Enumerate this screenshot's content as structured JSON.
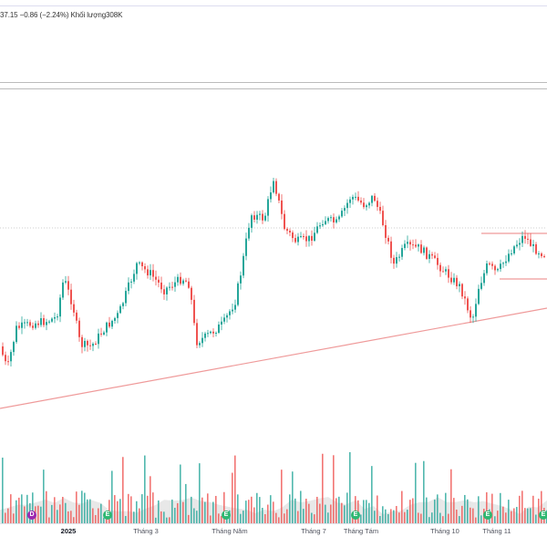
{
  "header": {
    "price_change": "37.15  −0.86 (−2.24%)",
    "volume_label": "Khối lượng",
    "volume_value": "308K"
  },
  "chart_data": {
    "type": "candlestick",
    "x_tick_labels": [
      "2025",
      "Tháng 3",
      "Tháng Năm",
      "Tháng 7",
      "Tháng Tám",
      "Tháng 10",
      "Tháng 11"
    ],
    "markers": [
      {
        "letter": "D",
        "color": "#9c27b0"
      },
      {
        "letter": "E",
        "color": "#2eb872"
      },
      {
        "letter": "E",
        "color": "#2eb872"
      },
      {
        "letter": "E",
        "color": "#2eb872"
      },
      {
        "letter": "E",
        "color": "#2eb872"
      },
      {
        "letter": "E",
        "color": "#2eb872"
      }
    ],
    "colors": {
      "up": "#26a69a",
      "down": "#ef5350",
      "trendline": "#ef9a9a",
      "volume_area": "#d6d6d6"
    }
  }
}
